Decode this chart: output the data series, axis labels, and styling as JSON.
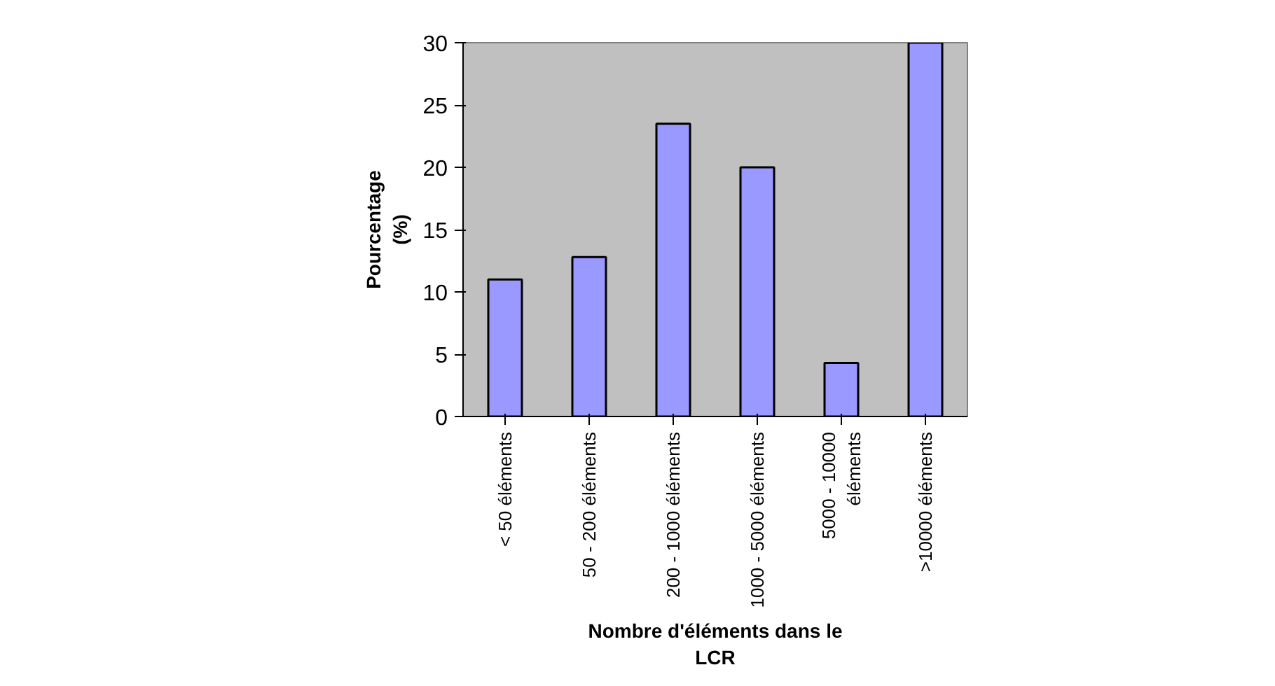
{
  "chart_data": {
    "type": "bar",
    "ylabel": "Pourcentage (%)",
    "xlabel": "Nombre d'éléments dans le LCR",
    "categories": [
      "< 50 éléments",
      "50 - 200 éléments",
      "200 - 1000 éléments",
      "1000 - 5000 éléments",
      "5000 - 10000 éléments",
      ">10000 éléments"
    ],
    "values": [
      11,
      12.8,
      23.5,
      20,
      4.3,
      30
    ],
    "color": "#9999ff",
    "ylim": [
      0,
      30
    ],
    "yticks": [
      0,
      5,
      10,
      15,
      20,
      25,
      30
    ],
    "grid": false
  }
}
